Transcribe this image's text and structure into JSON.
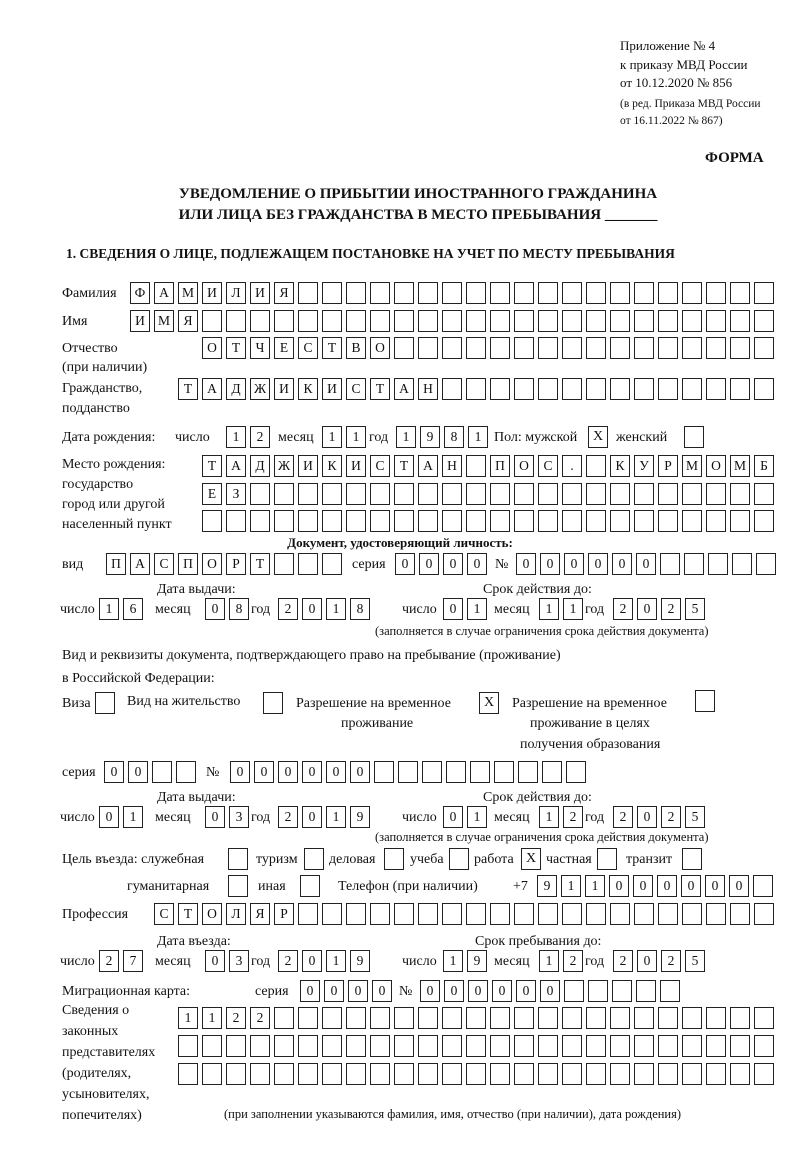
{
  "header": {
    "annex": "Приложение № 4",
    "order": "к приказу МВД России",
    "order_date": "от 10.12.2020 № 856",
    "edition_1": "(в ред. Приказа МВД России",
    "edition_2": "от 16.11.2022 № 867)",
    "form_label": "ФОРМА",
    "title_1": "УВЕДОМЛЕНИЕ О ПРИБЫТИИ ИНОСТРАННОГО ГРАЖДАНИНА",
    "title_2": "ИЛИ ЛИЦА БЕЗ ГРАЖДАНСТВА В МЕСТО ПРЕБЫВАНИЯ _______",
    "section_1": "1. СВЕДЕНИЯ О ЛИЦЕ, ПОДЛЕЖАЩЕМ ПОСТАНОВКЕ НА УЧЕТ ПО МЕСТУ ПРЕБЫВАНИЯ"
  },
  "labels": {
    "surname": "Фамилия",
    "name": "Имя",
    "patronymic_1": "Отчество",
    "patronymic_2": "(при наличии)",
    "citizenship_1": "Гражданство,",
    "citizenship_2": "подданство",
    "birth_date": "Дата рождения:",
    "day": "число",
    "month": "месяц",
    "year": "год",
    "sex": "Пол: мужской",
    "female": "женский",
    "birthplace_1": "Место рождения:",
    "birthplace_2": "государство",
    "birthplace_3": "город или другой",
    "birthplace_4": "населенный пункт",
    "id_doc": "Документ, удостоверяющий личность:",
    "kind": "вид",
    "series": "серия",
    "number": "№",
    "issue_date": "Дата выдачи:",
    "valid_until": "Срок действия до:",
    "validity_note": "(заполняется в случае ограничения срока действия документа)",
    "right_doc_1": "Вид и реквизиты документа, подтверждающего право на пребывание (проживание)",
    "right_doc_2": "в Российской Федерации:",
    "visa": "Виза",
    "residence_permit": "Вид на жительство",
    "temp_residence_1": "Разрешение на временное",
    "temp_residence_2": "проживание",
    "temp_edu_1": "Разрешение на временное",
    "temp_edu_2": "проживание в целях",
    "temp_edu_3": "получения образования",
    "purpose": "Цель въезда: служебная",
    "tourism": "туризм",
    "business": "деловая",
    "study": "учеба",
    "work": "работа",
    "private": "частная",
    "transit": "транзит",
    "humanitarian": "гуманитарная",
    "other": "иная",
    "phone": "Телефон (при наличии)",
    "phone_prefix": "+7",
    "profession": "Профессия",
    "entry_date": "Дата въезда:",
    "stay_until": "Срок пребывания до:",
    "migration_card": "Миграционная карта:",
    "reps_1": "Сведения о",
    "reps_2": "законных",
    "reps_3": "представителях",
    "reps_4": "(родителях,",
    "reps_5": "усыновителях,",
    "reps_6": "попечителях)",
    "reps_note": "(при заполнении указываются фамилия, имя, отчество (при наличии), дата рождения)"
  },
  "values": {
    "surname": "ФАМИЛИЯ",
    "name": "ИМЯ",
    "patronymic": "ОТЧЕСТВО",
    "citizenship": "ТАДЖИКИСТАН",
    "birth_day": "12",
    "birth_month": "11",
    "birth_year": "1981",
    "sex_male": "X",
    "sex_female": "",
    "birthplace_1": "ТАДЖИКИСТАН ПОС. КУРМОМБ",
    "birthplace_2": "ЕЗ",
    "birthplace_3": "",
    "id_kind": "ПАСПОРТ",
    "id_series": "0000",
    "id_number": "000000",
    "id_issue_day": "16",
    "id_issue_month": "08",
    "id_issue_year": "2018",
    "id_valid_day": "01",
    "id_valid_month": "11",
    "id_valid_year": "2025",
    "visa": "",
    "residence_permit": "",
    "temp_residence": "X",
    "temp_edu": "",
    "rd_series": "00",
    "rd_number": "000000",
    "rd_issue_day": "01",
    "rd_issue_month": "03",
    "rd_issue_year": "2019",
    "rd_valid_day": "01",
    "rd_valid_month": "12",
    "rd_valid_year": "2025",
    "purpose_official": "",
    "purpose_tourism": "",
    "purpose_business": "",
    "purpose_study": "",
    "purpose_work": "X",
    "purpose_private": "",
    "purpose_transit": "",
    "purpose_humanitarian": "",
    "purpose_other": "",
    "phone": "911000000",
    "profession": "СТОЛЯР",
    "entry_day": "27",
    "entry_month": "03",
    "entry_year": "2019",
    "stay_day": "19",
    "stay_month": "12",
    "stay_year": "2025",
    "mc_series": "0000",
    "mc_number": "000000",
    "reps_1": "1122",
    "reps_2": "",
    "reps_3": ""
  }
}
